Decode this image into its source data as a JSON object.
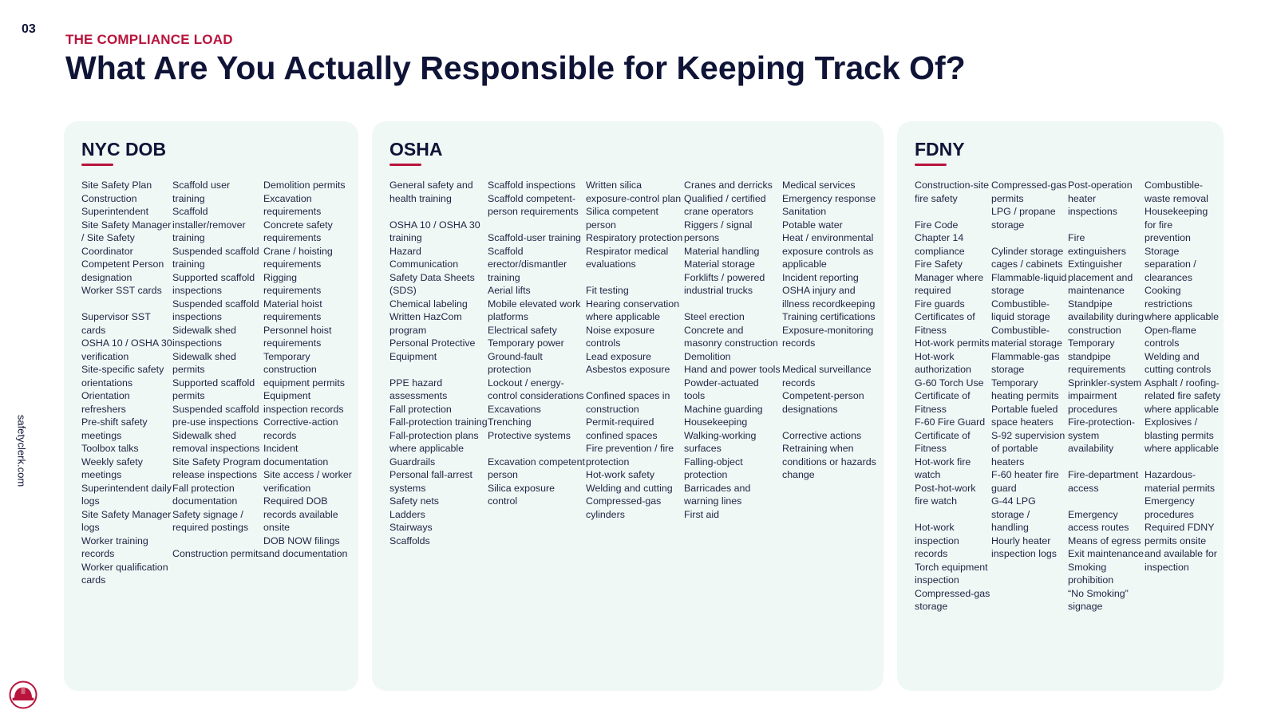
{
  "slide_number": "03",
  "eyebrow": "THE COMPLIANCE LOAD",
  "title": "What Are You Actually Responsible for Keeping Track Of?",
  "side_url": "safetyclerk.com",
  "colors": {
    "navy": "#0f1437",
    "accent": "#b8143c",
    "card_bg": "#eff8f5"
  },
  "logo_icon": "hard-hat-icon",
  "cards": {
    "nyc": {
      "title": "NYC DOB",
      "columns": [
        [
          "Site Safety Plan",
          "Construction Superintendent",
          "Site Safety Manager / Site Safety Coordinator",
          "Competent Person designation",
          "Worker SST cards",
          "",
          "Supervisor SST cards",
          "OSHA 10 / OSHA 30 verification",
          "Site-specific safety orientations",
          "Orientation refreshers",
          "Pre-shift safety meetings",
          "Toolbox talks",
          "Weekly safety meetings",
          "Superintendent daily logs",
          "Site Safety Manager logs",
          "Worker training records",
          "Worker qualification cards"
        ],
        [
          "Scaffold user training",
          "Scaffold installer/remover training",
          "Suspended scaffold training",
          "Supported scaffold inspections",
          "Suspended scaffold inspections",
          "Sidewalk shed inspections",
          "Sidewalk shed permits",
          "Supported scaffold permits",
          "Suspended scaffold pre-use inspections",
          "Sidewalk shed removal inspections",
          "Site Safety Program release inspections",
          "Fall protection documentation",
          "Safety signage / required postings",
          "",
          "Construction permits"
        ],
        [
          "Demolition permits",
          "Excavation requirements",
          "Concrete safety requirements",
          "Crane / hoisting requirements",
          "Rigging requirements",
          "Material hoist requirements",
          "Personnel hoist requirements",
          "Temporary construction equipment permits",
          "Equipment inspection records",
          "Corrective-action records",
          "Incident documentation",
          "Site access / worker verification",
          "Required DOB records available onsite",
          "DOB NOW filings and documentation"
        ]
      ]
    },
    "osha": {
      "title": "OSHA",
      "columns": [
        [
          "General safety and health training",
          "",
          "OSHA 10 / OSHA 30 training",
          "Hazard Communication",
          "Safety Data Sheets (SDS)",
          "Chemical labeling",
          "Written HazCom program",
          "Personal Protective Equipment",
          "",
          "PPE hazard assessments",
          "Fall protection",
          "Fall-protection training",
          "Fall-protection plans where applicable",
          "Guardrails",
          "Personal fall-arrest systems",
          "Safety nets",
          "Ladders",
          "Stairways",
          "Scaffolds"
        ],
        [
          "Scaffold inspections",
          "Scaffold competent-person requirements",
          "",
          "Scaffold-user training",
          "Scaffold erector/dismantler training",
          "Aerial lifts",
          "Mobile elevated work platforms",
          "Electrical safety",
          "Temporary power",
          "Ground-fault protection",
          "Lockout / energy-control considerations",
          "Excavations",
          "Trenching",
          "Protective systems",
          "",
          "Excavation competent person",
          "Silica exposure control"
        ],
        [
          "Written silica exposure-control plan",
          "Silica competent person",
          "Respiratory protection",
          "Respirator medical evaluations",
          "",
          "Fit testing",
          "Hearing conservation where applicable",
          "Noise exposure controls",
          "Lead exposure",
          "Asbestos exposure",
          "",
          "Confined spaces in construction",
          "Permit-required confined spaces",
          "Fire prevention / fire protection",
          "Hot-work safety",
          "Welding and cutting",
          "Compressed-gas cylinders"
        ],
        [
          "Cranes and derricks",
          "Qualified / certified crane operators",
          "Riggers / signal persons",
          "Material handling",
          "Material storage",
          "Forklifts / powered industrial trucks",
          "",
          "Steel erection",
          "Concrete and masonry construction",
          "Demolition",
          "Hand and power tools",
          "Powder-actuated tools",
          "Machine guarding",
          "Housekeeping",
          "Walking-working surfaces",
          "Falling-object protection",
          "Barricades and warning lines",
          "First aid"
        ],
        [
          "Medical services",
          "Emergency response",
          "Sanitation",
          "Potable water",
          "Heat / environmental exposure controls as applicable",
          "Incident reporting",
          "OSHA injury and illness recordkeeping",
          "Training certifications",
          "Exposure-monitoring records",
          "",
          "Medical surveillance records",
          "Competent-person designations",
          "",
          "Corrective actions",
          "Retraining when conditions or hazards change"
        ]
      ]
    },
    "fdny": {
      "title": "FDNY",
      "columns": [
        [
          "Construction-site fire safety",
          "",
          "Fire Code Chapter 14 compliance",
          "Fire Safety Manager where required",
          "Fire guards",
          "Certificates of Fitness",
          "Hot-work permits",
          "Hot-work authorization",
          "G-60 Torch Use",
          "Certificate of Fitness",
          "F-60 Fire Guard",
          "Certificate of Fitness",
          "Hot-work fire watch",
          "Post-hot-work fire watch",
          "",
          "Hot-work inspection records",
          "Torch equipment inspection",
          "Compressed-gas storage"
        ],
        [
          "Compressed-gas permits",
          "LPG / propane storage",
          "",
          "Cylinder storage cages / cabinets",
          "Flammable-liquid storage",
          "Combustible-liquid storage",
          "Combustible-material storage",
          "Flammable-gas storage",
          "Temporary heating permits",
          "Portable fueled space heaters",
          "S-92 supervision of portable heaters",
          "F-60 heater fire guard",
          "G-44 LPG storage / handling",
          "Hourly heater inspection logs"
        ],
        [
          "Post-operation heater inspections",
          "",
          "Fire extinguishers",
          "Extinguisher placement and maintenance",
          "Standpipe availability during construction",
          "Temporary standpipe requirements",
          "Sprinkler-system impairment procedures",
          "Fire-protection-system availability",
          "",
          "Fire-department access",
          "",
          "Emergency access routes",
          "Means of egress",
          "Exit maintenance",
          "Smoking prohibition",
          "“No Smoking” signage"
        ],
        [
          "Combustible-waste removal",
          "Housekeeping for fire prevention",
          "Storage separation / clearances",
          "Cooking restrictions where applicable",
          "Open-flame controls",
          "Welding and cutting controls",
          "Asphalt / roofing-related fire safety where applicable",
          "Explosives / blasting permits where applicable",
          "",
          "Hazardous-material permits",
          "Emergency procedures",
          "Required FDNY permits onsite and available for inspection"
        ]
      ]
    }
  }
}
